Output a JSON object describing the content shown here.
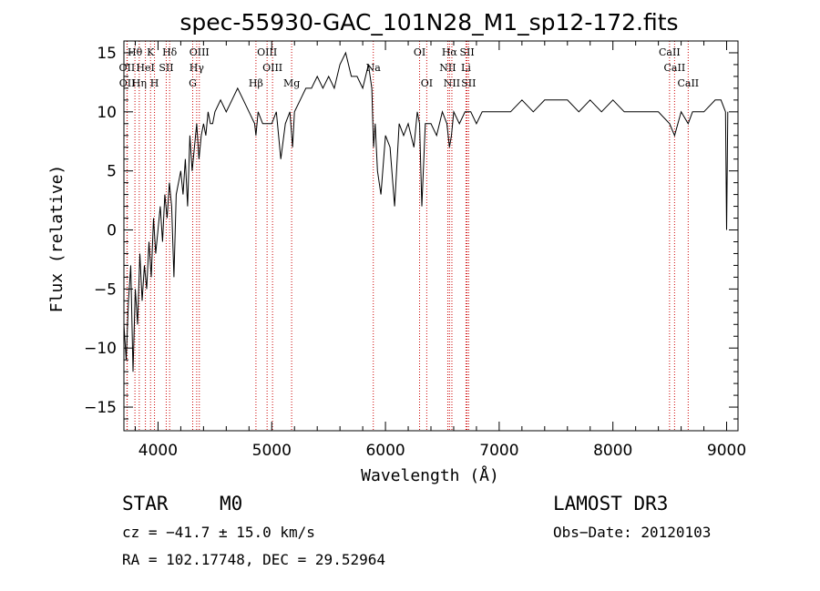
{
  "chart_data": {
    "type": "line",
    "title": "spec-55930-GAC_101N28_M1_sp12-172.fits",
    "xlabel": "Wavelength (Å)",
    "ylabel": "Flux (relative)",
    "xlim": [
      3700,
      9100
    ],
    "ylim": [
      -17,
      16
    ],
    "x_ticks": [
      4000,
      5000,
      6000,
      7000,
      8000,
      9000
    ],
    "y_ticks": [
      -15,
      -10,
      -5,
      0,
      5,
      10,
      15
    ],
    "x_tick_labels": [
      "4000",
      "5000",
      "6000",
      "7000",
      "8000",
      "9000"
    ],
    "y_tick_labels": [
      "−15",
      "−10",
      "−5",
      "0",
      "5",
      "10",
      "15"
    ],
    "series": [
      {
        "name": "flux",
        "x": [
          3700,
          3720,
          3740,
          3760,
          3780,
          3800,
          3820,
          3840,
          3860,
          3880,
          3900,
          3920,
          3940,
          3960,
          3980,
          4000,
          4020,
          4040,
          4060,
          4080,
          4100,
          4120,
          4140,
          4160,
          4180,
          4200,
          4220,
          4240,
          4260,
          4280,
          4300,
          4320,
          4340,
          4360,
          4380,
          4400,
          4420,
          4440,
          4460,
          4480,
          4500,
          4550,
          4600,
          4650,
          4700,
          4750,
          4800,
          4850,
          4861,
          4880,
          4920,
          4960,
          5000,
          5040,
          5080,
          5120,
          5160,
          5183,
          5200,
          5250,
          5300,
          5350,
          5400,
          5450,
          5500,
          5550,
          5600,
          5650,
          5700,
          5750,
          5800,
          5850,
          5880,
          5895,
          5910,
          5930,
          5960,
          6000,
          6040,
          6080,
          6120,
          6160,
          6200,
          6250,
          6280,
          6300,
          6320,
          6350,
          6400,
          6450,
          6500,
          6540,
          6563,
          6580,
          6600,
          6650,
          6700,
          6750,
          6800,
          6850,
          6900,
          6950,
          7000,
          7100,
          7200,
          7300,
          7400,
          7500,
          7600,
          7700,
          7800,
          7900,
          8000,
          8100,
          8200,
          8300,
          8400,
          8498,
          8542,
          8600,
          8662,
          8700,
          8800,
          8900,
          8950,
          8990,
          9000,
          9010
        ],
        "y": [
          -8,
          -11,
          -6,
          -3,
          -12,
          -5,
          -8,
          -2,
          -6,
          -3,
          -5,
          -1,
          -4,
          1,
          -2,
          0,
          2,
          -1,
          3,
          1,
          4,
          2,
          -4,
          3,
          4,
          5,
          3,
          6,
          2,
          8,
          5,
          7,
          9,
          6,
          8,
          9,
          8,
          10,
          9,
          9,
          10,
          11,
          10,
          11,
          12,
          11,
          10,
          9,
          8,
          10,
          9,
          9,
          9,
          10,
          6,
          9,
          10,
          7,
          10,
          11,
          12,
          12,
          13,
          12,
          13,
          12,
          14,
          15,
          13,
          13,
          12,
          14,
          12,
          7,
          9,
          5,
          3,
          8,
          7,
          2,
          9,
          8,
          9,
          7,
          10,
          9,
          2,
          9,
          9,
          8,
          10,
          9,
          7,
          8,
          10,
          9,
          10,
          10,
          9,
          10,
          10,
          10,
          10,
          10,
          11,
          10,
          11,
          11,
          11,
          10,
          11,
          10,
          11,
          10,
          10,
          10,
          10,
          9,
          8,
          10,
          9,
          10,
          10,
          11,
          11,
          10,
          0,
          10
        ]
      }
    ],
    "spectral_lines": [
      {
        "label": "Hθ",
        "wl": 3797,
        "row": 1
      },
      {
        "label": "K",
        "wl": 3934,
        "row": 1
      },
      {
        "label": "Hδ",
        "wl": 4102,
        "row": 1
      },
      {
        "label": "OIII",
        "wl": 4363,
        "row": 1
      },
      {
        "label": "OIII",
        "wl": 4959,
        "row": 1
      },
      {
        "label": "OI",
        "wl": 6300,
        "row": 1
      },
      {
        "label": "Hα",
        "wl": 6563,
        "row": 1
      },
      {
        "label": "SII",
        "wl": 6717,
        "row": 1
      },
      {
        "label": "CaII",
        "wl": 8498,
        "row": 1
      },
      {
        "label": "OII",
        "wl": 3727,
        "row": 2
      },
      {
        "label": "HeI",
        "wl": 3889,
        "row": 2
      },
      {
        "label": "SII",
        "wl": 4072,
        "row": 2
      },
      {
        "label": "Hγ",
        "wl": 4340,
        "row": 2
      },
      {
        "label": "OIII",
        "wl": 5007,
        "row": 2
      },
      {
        "label": "Na",
        "wl": 5893,
        "row": 2
      },
      {
        "label": "NII",
        "wl": 6548,
        "row": 2
      },
      {
        "label": "Li",
        "wl": 6708,
        "row": 2
      },
      {
        "label": "CaII",
        "wl": 8542,
        "row": 2
      },
      {
        "label": "OII",
        "wl": 3729,
        "row": 3
      },
      {
        "label": "Hη",
        "wl": 3835,
        "row": 3
      },
      {
        "label": "H",
        "wl": 3969,
        "row": 3
      },
      {
        "label": "G",
        "wl": 4305,
        "row": 3
      },
      {
        "label": "Hβ",
        "wl": 4861,
        "row": 3
      },
      {
        "label": "Mg",
        "wl": 5175,
        "row": 3
      },
      {
        "label": "OI",
        "wl": 6363,
        "row": 3
      },
      {
        "label": "NII",
        "wl": 6584,
        "row": 3
      },
      {
        "label": "SII",
        "wl": 6731,
        "row": 3
      },
      {
        "label": "CaII",
        "wl": 8662,
        "row": 3
      }
    ]
  },
  "info": {
    "class": "STAR",
    "subclass": "M0",
    "survey": "LAMOST DR3",
    "cz": "cz = −41.7 ± 15.0 km/s",
    "obs_date": "Obs−Date: 20120103",
    "coords": "RA = 102.17748, DEC =  29.52964"
  },
  "colors": {
    "line_marker": "#cc0000",
    "spectrum": "#000000"
  }
}
